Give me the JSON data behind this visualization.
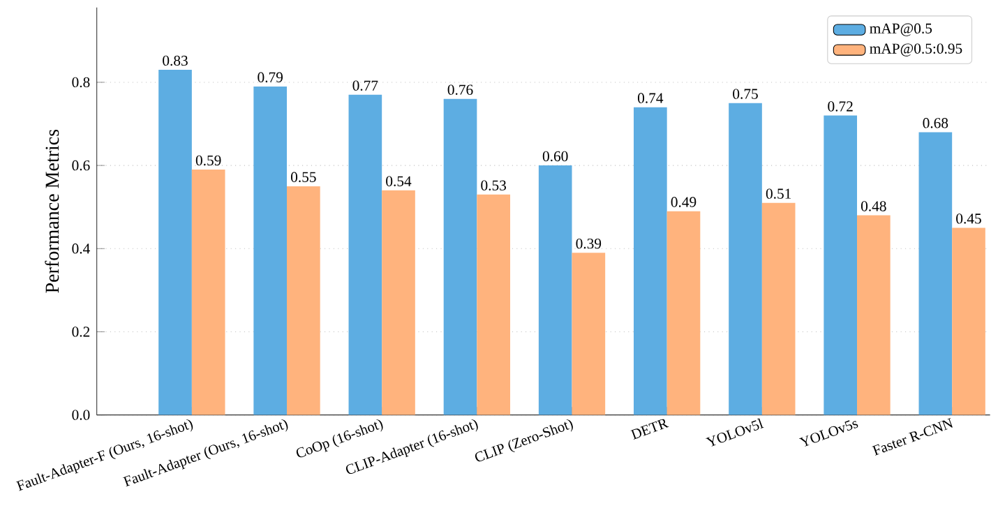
{
  "chart_data": {
    "type": "bar",
    "ylabel": "Performance Metrics",
    "categories": [
      "Fault-Adapter-F (Ours, 16-shot)",
      "Fault-Adapter (Ours, 16-shot)",
      "CoOp (16-shot)",
      "CLIP-Adapter (16-shot)",
      "CLIP (Zero-Shot)",
      "DETR",
      "YOLOv5l",
      "YOLOv5s",
      "Faster R-CNN"
    ],
    "series": [
      {
        "name": "mAP@0.5",
        "color": "#5dade2",
        "values": [
          0.83,
          0.79,
          0.77,
          0.76,
          0.6,
          0.74,
          0.75,
          0.72,
          0.68
        ],
        "value_labels": [
          "0.83",
          "0.79",
          "0.77",
          "0.76",
          "0.60",
          "0.74",
          "0.75",
          "0.72",
          "0.68"
        ]
      },
      {
        "name": "mAP@0.5:0.95",
        "color": "#ffb37d",
        "values": [
          0.59,
          0.55,
          0.54,
          0.53,
          0.39,
          0.49,
          0.51,
          0.48,
          0.45
        ],
        "value_labels": [
          "0.59",
          "0.55",
          "0.54",
          "0.53",
          "0.39",
          "0.49",
          "0.51",
          "0.48",
          "0.45"
        ]
      }
    ],
    "ylim": [
      0,
      0.98
    ],
    "yticks": [
      {
        "value": 0,
        "label": "0.0"
      },
      0.2,
      0.4,
      0.6,
      0.8
    ],
    "grid": "y",
    "legend": "top right"
  }
}
